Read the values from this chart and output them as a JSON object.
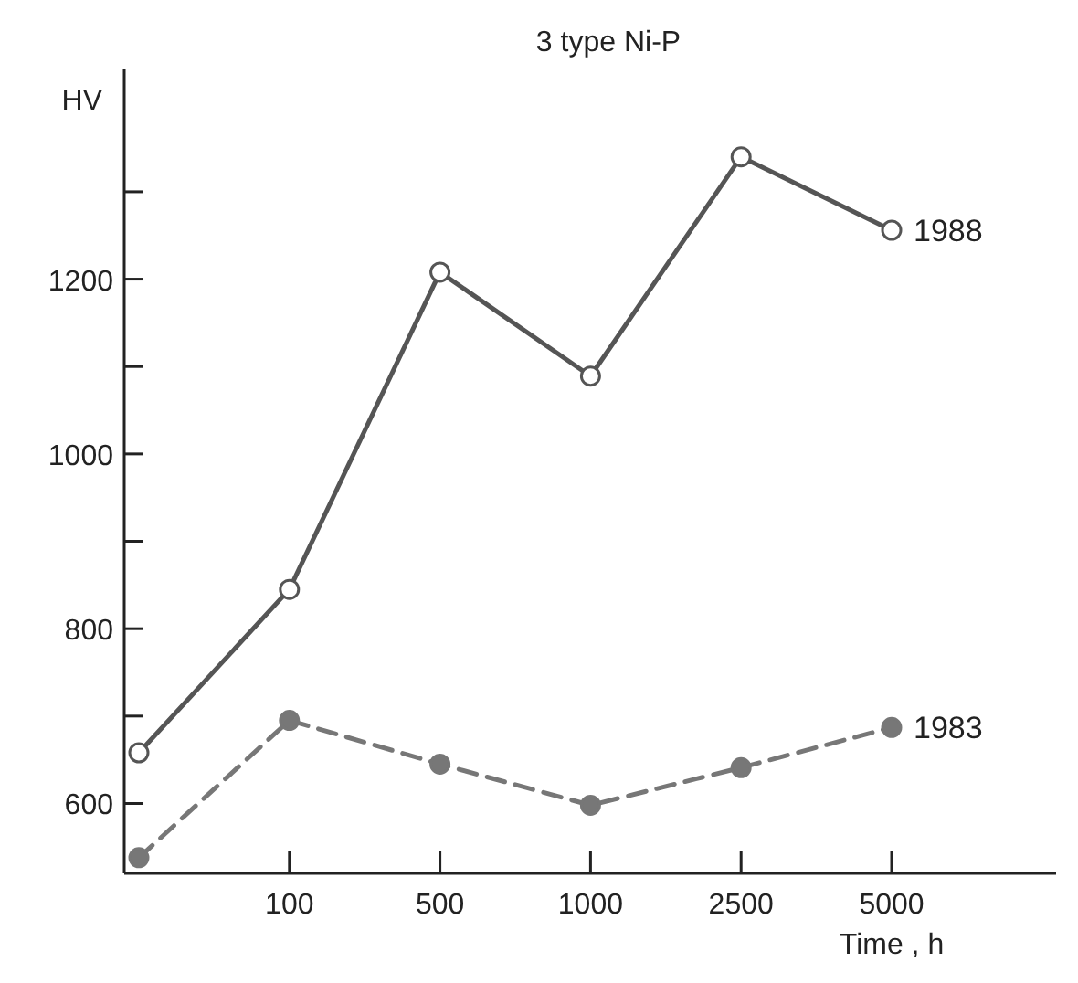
{
  "chart_data": {
    "type": "line",
    "title": "3 type Ni-P",
    "xlabel": "Time , h",
    "ylabel": "HV",
    "categories": [
      null,
      "100",
      "500",
      "1000",
      "2500",
      "5000"
    ],
    "series": [
      {
        "name": "1988",
        "color": "#555555",
        "marker": "circle",
        "line_style": "solid",
        "values": [
          658,
          845,
          1208,
          1089,
          1340,
          1256
        ]
      },
      {
        "name": "1983",
        "color": "#777777",
        "marker": "circle",
        "line_style": "dashed",
        "values": [
          538,
          695,
          645,
          598,
          641,
          687
        ]
      }
    ],
    "ylim": [
      520,
      1440
    ],
    "yticks": [
      600,
      {
        "value": 700,
        "label": null
      },
      800,
      {
        "value": 900,
        "label": null
      },
      1000,
      {
        "value": 1100,
        "label": null
      },
      1200,
      {
        "value": 1300,
        "label": null
      }
    ],
    "grid": false
  }
}
